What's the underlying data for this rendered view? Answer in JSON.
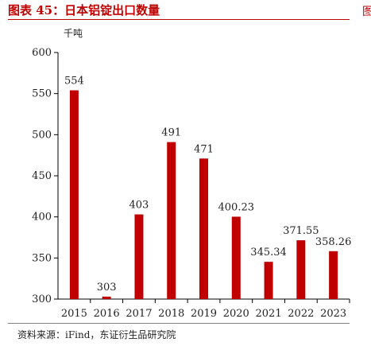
{
  "header": {
    "title": "图表 45：日本铝锭出口数量",
    "edge_glyph": "图"
  },
  "footer": {
    "source": "资料来源：iFind，东证衍生品研究院"
  },
  "chart_data": {
    "type": "bar",
    "title": "",
    "xlabel": "",
    "ylabel": "千吨",
    "ylim": [
      300,
      600
    ],
    "yticks": [
      300,
      350,
      400,
      450,
      500,
      550,
      600
    ],
    "categories": [
      "2015",
      "2016",
      "2017",
      "2018",
      "2019",
      "2020",
      "2021",
      "2022",
      "2023"
    ],
    "values": [
      554,
      303,
      403,
      491,
      471,
      400.23,
      345.34,
      371.55,
      358.26
    ],
    "data_labels": [
      "554",
      "303",
      "403",
      "491",
      "471",
      "400.23",
      "345.34",
      "371.55",
      "358.26"
    ],
    "bar_color": "#c00000",
    "grid": false,
    "legend": "none"
  }
}
